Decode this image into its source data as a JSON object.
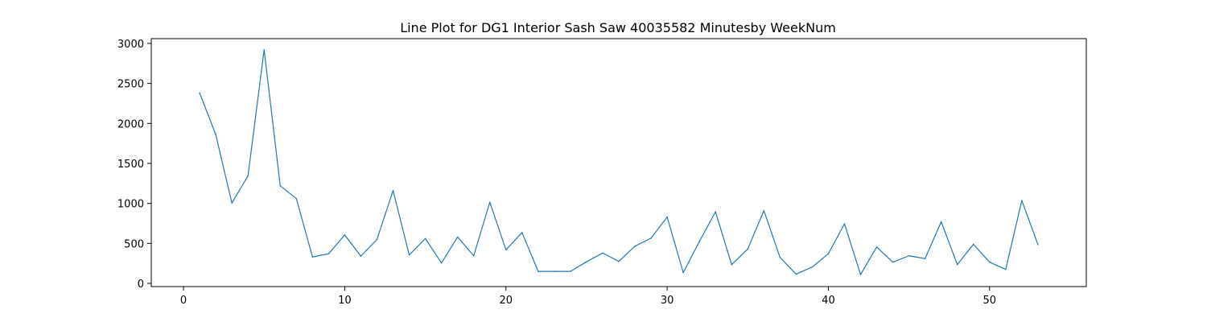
{
  "chart_data": {
    "type": "line",
    "title": "Line Plot for DG1 Interior Sash Saw 40035582 Minutesby WeekNum",
    "xlabel": "",
    "ylabel": "",
    "xlim": [
      -2,
      56
    ],
    "ylim": [
      -40,
      3060
    ],
    "x_ticks": [
      0,
      10,
      20,
      30,
      40,
      50
    ],
    "y_ticks": [
      0,
      500,
      1000,
      1500,
      2000,
      2500,
      3000
    ],
    "grid": false,
    "line_color": "#1f77b4",
    "series": [
      {
        "x": [
          1,
          2,
          3,
          4,
          5,
          6,
          7,
          8,
          9,
          10,
          11,
          12,
          13,
          14,
          15,
          16,
          17,
          18,
          19,
          20,
          21,
          22,
          23,
          24,
          25,
          26,
          27,
          28,
          29,
          30,
          31,
          32,
          33,
          34,
          35,
          36,
          37,
          38,
          39,
          40,
          41,
          42,
          43,
          44,
          45,
          46,
          47,
          48,
          49,
          50,
          51,
          52,
          53
        ],
        "values": [
          2380,
          1860,
          1005,
          1345,
          2920,
          1220,
          1060,
          330,
          370,
          605,
          340,
          550,
          1160,
          355,
          560,
          255,
          580,
          345,
          1015,
          420,
          635,
          150,
          150,
          150,
          270,
          380,
          275,
          465,
          565,
          830,
          135,
          525,
          895,
          235,
          430,
          910,
          325,
          115,
          205,
          370,
          745,
          110,
          455,
          265,
          345,
          310,
          770,
          235,
          490,
          265,
          175,
          1035,
          485
        ]
      }
    ]
  }
}
